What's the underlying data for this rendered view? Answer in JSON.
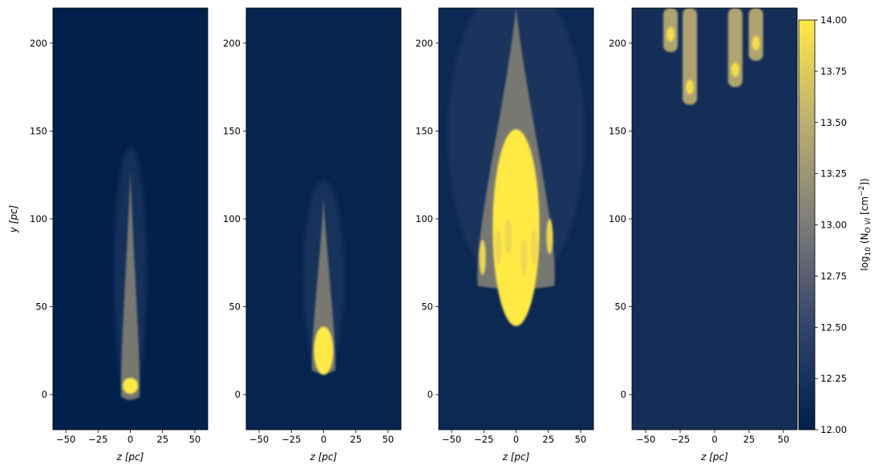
{
  "chart_data": {
    "type": "heatmap",
    "colormap": "cividis",
    "panels": [
      {
        "xlabel": "z [pc]",
        "ylabel": "y [pc]",
        "xlim": [
          -60,
          60
        ],
        "ylim": [
          -20,
          220
        ],
        "xticks": [
          -50,
          -25,
          0,
          25,
          50
        ],
        "yticks": [
          0,
          50,
          100,
          150,
          200
        ],
        "background_level": 12.0,
        "plume": {
          "tip_y": 128,
          "base_y": -3,
          "core_y": 5,
          "max_level": 14.0
        }
      },
      {
        "xlabel": "z [pc]",
        "ylabel": "",
        "xlim": [
          -60,
          60
        ],
        "ylim": [
          -20,
          220
        ],
        "xticks": [
          -50,
          -25,
          0,
          25,
          50
        ],
        "yticks": [
          0,
          50,
          100,
          150,
          200
        ],
        "background_level": 12.05,
        "plume": {
          "tip_y": 112,
          "base_y": 12,
          "core_y": 25,
          "max_level": 14.0
        }
      },
      {
        "xlabel": "z [pc]",
        "ylabel": "",
        "xlim": [
          -60,
          60
        ],
        "ylim": [
          -20,
          220
        ],
        "xticks": [
          -50,
          -25,
          0,
          25,
          50
        ],
        "yticks": [
          0,
          50,
          100,
          150,
          200
        ],
        "background_level": 12.12,
        "plume": {
          "tip_y": 220,
          "base_y": 60,
          "core_y": 95,
          "max_level": 14.0
        }
      },
      {
        "xlabel": "z [pc]",
        "ylabel": "",
        "xlim": [
          -60,
          60
        ],
        "ylim": [
          -20,
          220
        ],
        "xticks": [
          -50,
          -25,
          0,
          25,
          50
        ],
        "yticks": [
          0,
          50,
          100,
          150,
          200
        ],
        "background_level": 12.2,
        "fingers_bottom_y": [
          195,
          165,
          175,
          190
        ],
        "fingers_z": [
          -32,
          -18,
          15,
          30
        ]
      }
    ],
    "colorbar": {
      "label": "log10 (N_O VI [cm^-2])",
      "label_main": "log",
      "label_sub": "10",
      "label_rest": " (N",
      "label_sub2": "O VI",
      "label_rest2": " [cm",
      "label_sup": "−2",
      "label_end": "])",
      "min": 12.0,
      "max": 14.0,
      "ticks": [
        "12.00",
        "12.25",
        "12.50",
        "12.75",
        "13.00",
        "13.25",
        "13.50",
        "13.75",
        "14.00"
      ]
    }
  }
}
